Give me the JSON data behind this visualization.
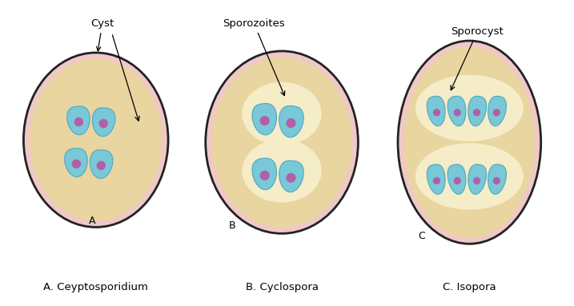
{
  "bg_color": "#ffffff",
  "outer_ellipse_fill": "#f0c8c8",
  "outer_ellipse_edge": "#222222",
  "inner_fill": "#e8d5a0",
  "sporocyst_fill": "#f5ecc8",
  "sporozoite_color": "#78c8d8",
  "sporozoite_edge": "#50a8c0",
  "nucleus_color": "#b060a8",
  "label_A": "A. Ceyptosporidium",
  "label_B": "B. Cyclospora",
  "label_C": "C. Isopora",
  "annotation_cyst": "Cyst",
  "annotation_sporozoites": "Sporozoites",
  "annotation_sporocyst": "Sporocyst"
}
